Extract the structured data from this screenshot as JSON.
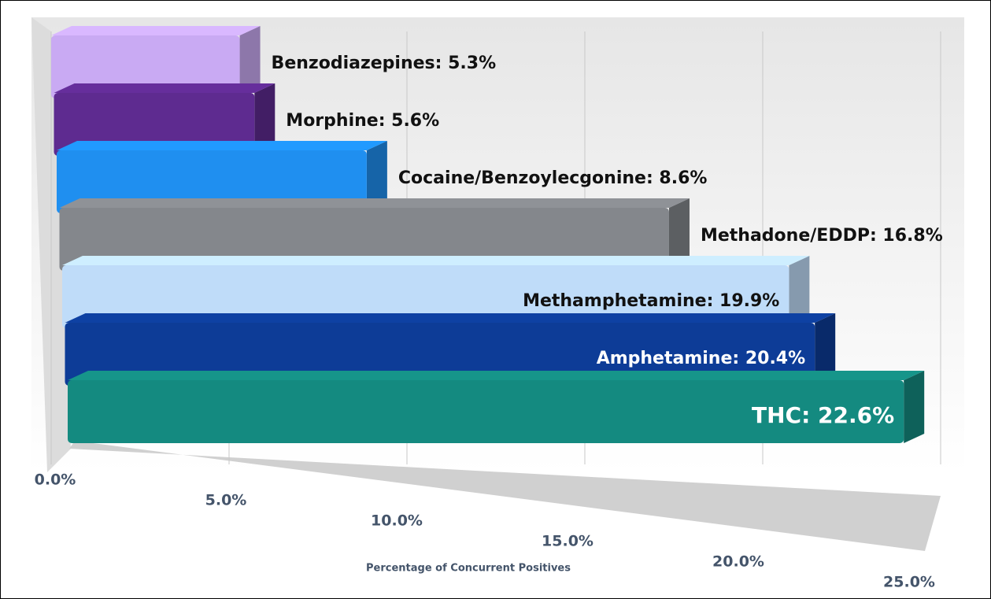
{
  "chart_data": {
    "type": "bar3d",
    "values": [
      5.3,
      5.6,
      8.6,
      16.8,
      19.9,
      20.4,
      22.6
    ],
    "value_labels": [
      "Benzodiazepines: 5.3%",
      "Morphine: 5.6%",
      "Cocaine/Benzoylecgonine: 8.6%",
      "Methadone/EDDP: 16.8%",
      "Methamphetamine: 19.9%",
      "Amphetamine: 20.4%",
      "THC: 22.6%"
    ],
    "colors": [
      "#c9aaf3",
      "#5e2b90",
      "#1f8ff0",
      "#84878c",
      "#bfdcf9",
      "#0d3c97",
      "#148a80"
    ],
    "xlim": [
      0,
      25
    ],
    "xticks": [
      {
        "value": 0,
        "label": "0.0%"
      },
      {
        "value": 5,
        "label": "5.0%"
      },
      {
        "value": 10,
        "label": "10.0%"
      },
      {
        "value": 15,
        "label": "15.0%"
      },
      {
        "value": 20,
        "label": "20.0%"
      },
      {
        "value": 25,
        "label": "25.0%"
      }
    ],
    "xlabel": "Percentage of Concurrent Positives",
    "grid": true
  }
}
